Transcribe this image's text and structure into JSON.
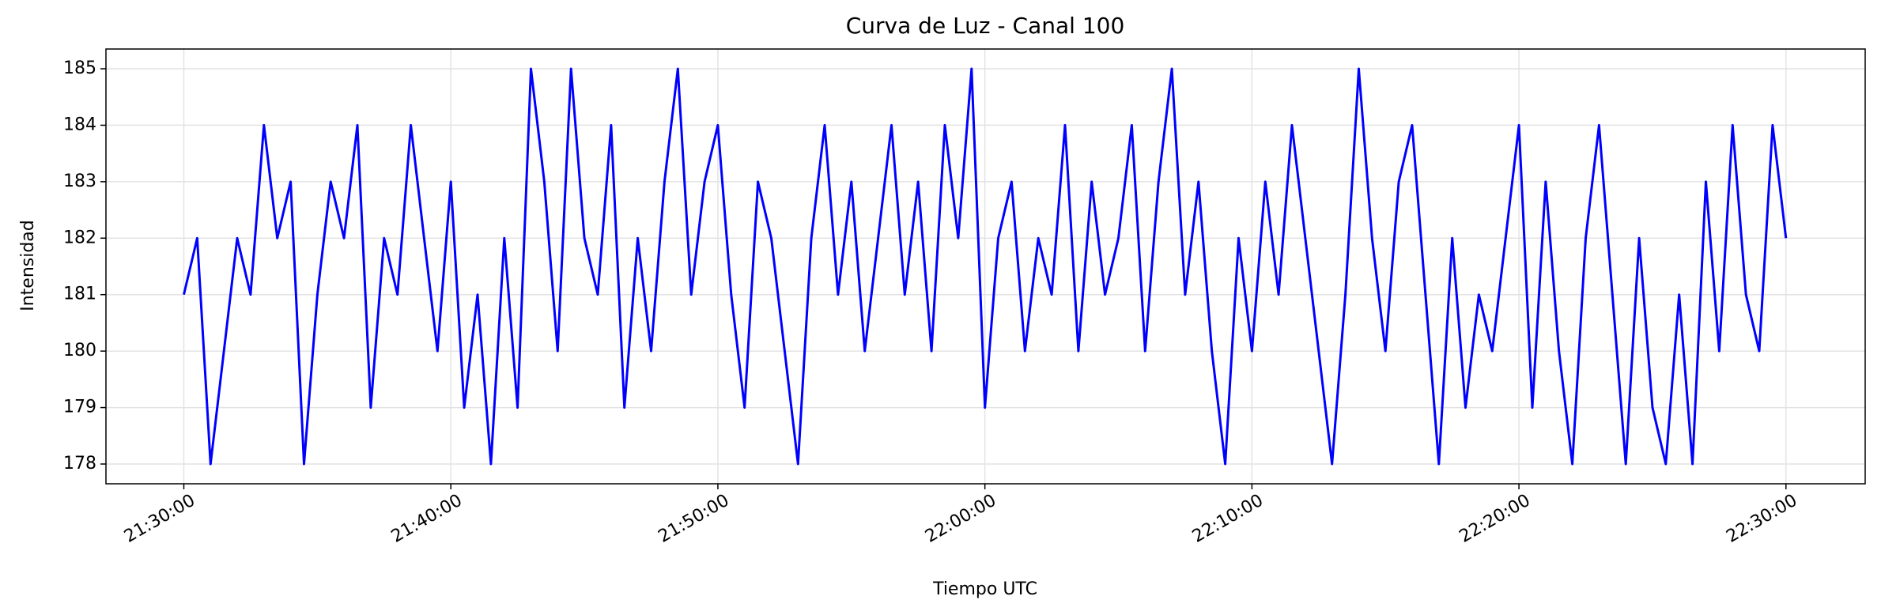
{
  "chart_data": {
    "type": "line",
    "title": "Curva de Luz - Canal 100",
    "xlabel": "Tiempo UTC",
    "ylabel": "Intensidad",
    "x": [
      "21:30:00",
      "21:30:30",
      "21:31:00",
      "21:31:30",
      "21:32:00",
      "21:32:30",
      "21:33:00",
      "21:33:30",
      "21:34:00",
      "21:34:30",
      "21:35:00",
      "21:35:30",
      "21:36:00",
      "21:36:30",
      "21:37:00",
      "21:37:30",
      "21:38:00",
      "21:38:30",
      "21:39:00",
      "21:39:30",
      "21:40:00",
      "21:40:30",
      "21:41:00",
      "21:41:30",
      "21:42:00",
      "21:42:30",
      "21:43:00",
      "21:43:30",
      "21:44:00",
      "21:44:30",
      "21:45:00",
      "21:45:30",
      "21:46:00",
      "21:46:30",
      "21:47:00",
      "21:47:30",
      "21:48:00",
      "21:48:30",
      "21:49:00",
      "21:49:30",
      "21:50:00",
      "21:50:30",
      "21:51:00",
      "21:51:30",
      "21:52:00",
      "21:52:30",
      "21:53:00",
      "21:53:30",
      "21:54:00",
      "21:54:30",
      "21:55:00",
      "21:55:30",
      "21:56:00",
      "21:56:30",
      "21:57:00",
      "21:57:30",
      "21:58:00",
      "21:58:30",
      "21:59:00",
      "21:59:30",
      "22:00:00",
      "22:00:30",
      "22:01:00",
      "22:01:30",
      "22:02:00",
      "22:02:30",
      "22:03:00",
      "22:03:30",
      "22:04:00",
      "22:04:30",
      "22:05:00",
      "22:05:30",
      "22:06:00",
      "22:06:30",
      "22:07:00",
      "22:07:30",
      "22:08:00",
      "22:08:30",
      "22:09:00",
      "22:09:30",
      "22:10:00",
      "22:10:30",
      "22:11:00",
      "22:11:30",
      "22:12:00",
      "22:12:30",
      "22:13:00",
      "22:13:30",
      "22:14:00",
      "22:14:30",
      "22:15:00",
      "22:15:30",
      "22:16:00",
      "22:16:30",
      "22:17:00",
      "22:17:30",
      "22:18:00",
      "22:18:30",
      "22:19:00",
      "22:19:30",
      "22:20:00",
      "22:20:30",
      "22:21:00",
      "22:21:30",
      "22:22:00",
      "22:22:30",
      "22:23:00",
      "22:23:30",
      "22:24:00",
      "22:24:30",
      "22:25:00",
      "22:25:30",
      "22:26:00",
      "22:26:30",
      "22:27:00",
      "22:27:30",
      "22:28:00",
      "22:28:30",
      "22:29:00",
      "22:29:30",
      "22:30:00"
    ],
    "series": [
      {
        "color": "#0000ff",
        "values": [
          181,
          182,
          178,
          180,
          182,
          181,
          184,
          182,
          183,
          178,
          181,
          183,
          182,
          184,
          179,
          182,
          181,
          184,
          182,
          180,
          183,
          179,
          181,
          178,
          182,
          179,
          185,
          183,
          180,
          185,
          182,
          181,
          184,
          179,
          182,
          180,
          183,
          185,
          181,
          183,
          184,
          181,
          179,
          183,
          182,
          180,
          178,
          182,
          184,
          181,
          183,
          180,
          182,
          184,
          181,
          183,
          180,
          184,
          182,
          185,
          179,
          182,
          183,
          180,
          182,
          181,
          184,
          180,
          183,
          181,
          182,
          184,
          180,
          183,
          185,
          181,
          183,
          180,
          178,
          182,
          180,
          183,
          181,
          184,
          182,
          180,
          178,
          181,
          185,
          182,
          180,
          183,
          184,
          181,
          178,
          182,
          179,
          181,
          180,
          182,
          184,
          179,
          183,
          180,
          178,
          182,
          184,
          181,
          178,
          182,
          179,
          178,
          181,
          178,
          183,
          180,
          184,
          181,
          180,
          184,
          182
        ]
      }
    ],
    "xlim": [
      "21:27:05",
      "22:32:58"
    ],
    "xticks": [
      "21:30:00",
      "21:40:00",
      "21:50:00",
      "22:00:00",
      "22:10:00",
      "22:20:00",
      "22:30:00"
    ],
    "ylim": [
      177.65,
      185.35
    ],
    "yticks": [
      178,
      179,
      180,
      181,
      182,
      183,
      184,
      185
    ],
    "grid": true
  }
}
